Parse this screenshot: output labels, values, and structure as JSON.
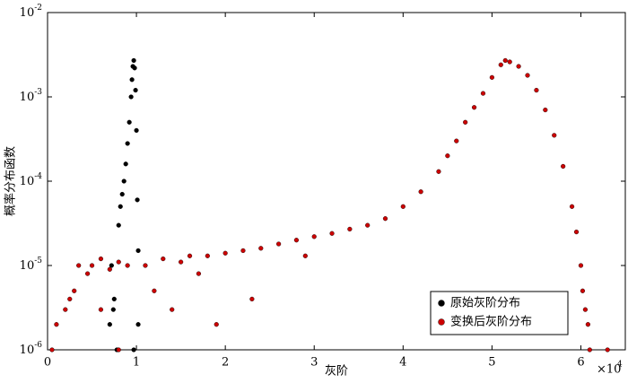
{
  "chart_data": {
    "type": "scatter",
    "x_label": "灰阶",
    "y_label": "概率分布函数",
    "x_multiplier": "×10",
    "x_multiplier_exp": "4",
    "log_y": true,
    "grid": false,
    "legend": "lower right",
    "xlim": [
      0,
      6.5
    ],
    "xticks": [
      0,
      1,
      2,
      3,
      4,
      5,
      6
    ],
    "ylim": [
      1e-06,
      0.01
    ],
    "yticks": [
      {
        "value": 1e-06,
        "label": "10-6"
      },
      {
        "value": 1e-05,
        "label": "10-5"
      },
      {
        "value": 0.0001,
        "label": "10-4"
      },
      {
        "value": 0.001,
        "label": "10-3"
      },
      {
        "value": 0.01,
        "label": "10-2"
      }
    ],
    "series": [
      {
        "name": "原始灰阶分布",
        "color": "#000000",
        "x": [
          0.7,
          0.72,
          0.74,
          0.75,
          0.78,
          0.8,
          0.82,
          0.84,
          0.86,
          0.88,
          0.9,
          0.92,
          0.94,
          0.95,
          0.96,
          0.97,
          0.98,
          0.99,
          1.0,
          1.01,
          1.02,
          0.97,
          1.02
        ],
        "values": [
          2e-06,
          1e-05,
          3e-06,
          4e-06,
          1e-06,
          3e-05,
          5e-05,
          7e-05,
          0.0001,
          0.00016,
          0.00028,
          0.0005,
          0.001,
          0.0016,
          0.0023,
          0.0027,
          0.0022,
          0.0012,
          0.0004,
          6e-05,
          1.5e-05,
          1e-06,
          2e-06
        ]
      },
      {
        "name": "变换后灰阶分布",
        "color": "#cc0000",
        "x": [
          0.05,
          0.1,
          0.2,
          0.25,
          0.3,
          0.35,
          0.45,
          0.5,
          0.6,
          0.7,
          0.8,
          0.9,
          1.1,
          1.2,
          1.3,
          1.4,
          1.5,
          1.6,
          1.7,
          1.8,
          1.9,
          2.0,
          2.2,
          2.3,
          2.4,
          2.6,
          2.8,
          2.9,
          3.0,
          3.2,
          3.4,
          3.6,
          3.8,
          4.0,
          4.2,
          4.4,
          4.5,
          4.6,
          4.7,
          4.8,
          4.9,
          5.0,
          5.1,
          5.15,
          5.2,
          5.3,
          5.4,
          5.5,
          5.6,
          5.7,
          5.8,
          5.9,
          5.95,
          6.0,
          6.02,
          6.05,
          6.08,
          6.1,
          6.3,
          0.8,
          0.6
        ],
        "values": [
          1e-06,
          2e-06,
          3e-06,
          4e-06,
          5e-06,
          1e-05,
          8e-06,
          1e-05,
          1.2e-05,
          9e-06,
          1.1e-05,
          1e-05,
          1e-05,
          5e-06,
          1.2e-05,
          3e-06,
          1.1e-05,
          1.3e-05,
          8e-06,
          1.3e-05,
          2e-06,
          1.4e-05,
          1.5e-05,
          4e-06,
          1.6e-05,
          1.8e-05,
          2e-05,
          1.3e-05,
          2.2e-05,
          2.4e-05,
          2.7e-05,
          3e-05,
          3.6e-05,
          5e-05,
          7.5e-05,
          0.00013,
          0.0002,
          0.0003,
          0.0005,
          0.00075,
          0.0011,
          0.0017,
          0.0024,
          0.0027,
          0.0026,
          0.0023,
          0.0018,
          0.0012,
          0.0007,
          0.00035,
          0.00015,
          5e-05,
          2.5e-05,
          1e-05,
          5e-06,
          3e-06,
          2e-06,
          1e-06,
          1e-06,
          1e-06,
          3e-06
        ]
      }
    ]
  }
}
